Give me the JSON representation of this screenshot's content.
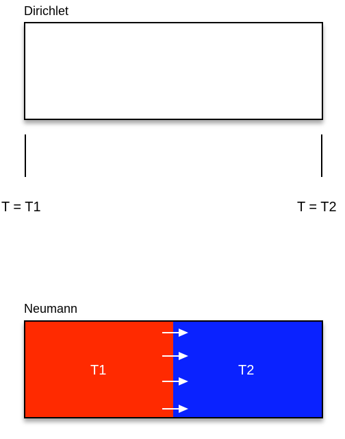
{
  "dirichlet": {
    "title": "Dirichlet",
    "left_label": "T = T1",
    "right_label": "T = T2"
  },
  "neumann": {
    "title": "Neumann",
    "left_region_label": "T1",
    "right_region_label": "T2",
    "left_color": "#ff2a00",
    "right_color": "#0a22ff",
    "flux_arrow_count": 4
  }
}
